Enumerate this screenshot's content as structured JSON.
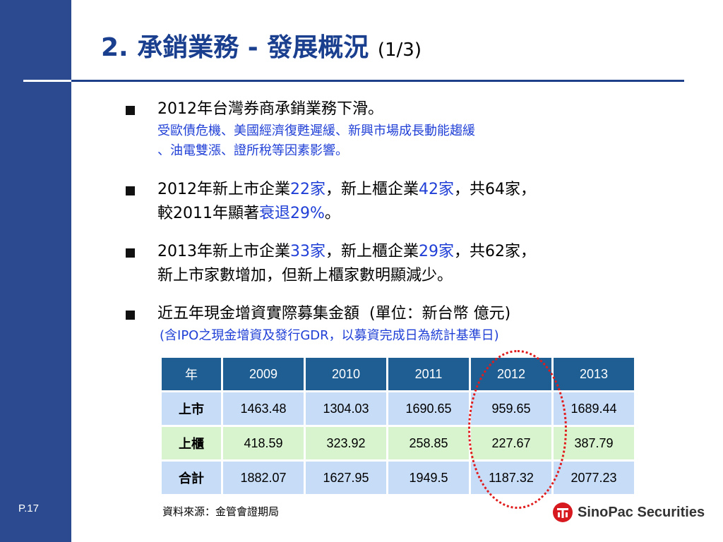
{
  "slide": {
    "title": "2. 承銷業務 - 發展概況",
    "title_suffix": "(1/3)",
    "page_number": "P.17"
  },
  "bullets": [
    {
      "parts": [
        {
          "text": "2012年台灣券商承銷業務下滑。",
          "style": "normal"
        }
      ],
      "note_lines": [
        "受歐債危機、美國經濟復甦遲緩、新興市場成長動能趨緩",
        "、油電雙漲、證所稅等因素影響。"
      ]
    },
    {
      "line1": [
        {
          "text": "2012年新上市企業",
          "style": "normal"
        },
        {
          "text": "22家",
          "style": "blue"
        },
        {
          "text": "，新上櫃企業",
          "style": "normal"
        },
        {
          "text": "42家",
          "style": "blue"
        },
        {
          "text": "，共64家，",
          "style": "normal"
        }
      ],
      "line2": [
        {
          "text": "較2011年顯著",
          "style": "normal"
        },
        {
          "text": "衰退29%",
          "style": "blue"
        },
        {
          "text": "。",
          "style": "normal"
        }
      ]
    },
    {
      "line1": [
        {
          "text": "2013年新上市企業",
          "style": "normal"
        },
        {
          "text": "33家",
          "style": "blue"
        },
        {
          "text": "，新上櫃企業",
          "style": "normal"
        },
        {
          "text": "29家",
          "style": "blue"
        },
        {
          "text": "，共62家，",
          "style": "normal"
        }
      ],
      "line2": [
        {
          "text": "新上市家數增加，但新上櫃家數明顯減少。",
          "style": "normal"
        }
      ]
    },
    {
      "parts": [
        {
          "text": "近五年現金增資實際募集金額  (單位：新台幣 億元)",
          "style": "normal"
        }
      ],
      "note_lines": [
        "(含IPO之現金增資及發行GDR，以募資完成日為統計基準日)"
      ]
    }
  ],
  "table": {
    "header_label": "年",
    "years": [
      "2009",
      "2010",
      "2011",
      "2012",
      "2013"
    ],
    "rows": [
      {
        "label": "上市",
        "values": [
          "1463.48",
          "1304.03",
          "1690.65",
          "959.65",
          "1689.44"
        ]
      },
      {
        "label": "上櫃",
        "values": [
          "418.59",
          "323.92",
          "258.85",
          "227.67",
          "387.79"
        ]
      },
      {
        "label": "合計",
        "values": [
          "1882.07",
          "1627.95",
          "1949.5",
          "1187.32",
          "2077.23"
        ]
      }
    ],
    "highlight_year": "2012",
    "highlight_color": "#e01c1c"
  },
  "footer": {
    "source": "資料來源：金管會證期局",
    "logo_text": "SinoPac Securities",
    "logo_icon": "sinopac-logo-icon"
  },
  "colors": {
    "sidebar": "#2b4a8f",
    "title": "#1a3f8f",
    "emphasis": "#1f3fd6",
    "table_header": "#1f5e93"
  }
}
